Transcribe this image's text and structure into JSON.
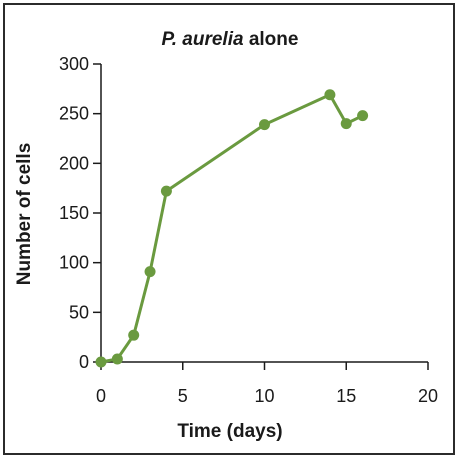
{
  "chart_data": {
    "type": "line",
    "title": {
      "italic": "P. aurelia",
      "rest": " alone"
    },
    "xlabel": "Time (days)",
    "ylabel": "Number of cells",
    "xlim": [
      0,
      20
    ],
    "ylim": [
      0,
      300
    ],
    "xticks": [
      0,
      5,
      10,
      15,
      20
    ],
    "yticks": [
      0,
      50,
      100,
      150,
      200,
      250,
      300
    ],
    "grid": false,
    "color": "#6a9a3f",
    "series": [
      {
        "x": [
          0,
          1,
          2,
          3,
          4,
          10,
          14,
          15,
          16
        ],
        "y": [
          0,
          3,
          27,
          91,
          172,
          239,
          269,
          240,
          248
        ]
      }
    ]
  }
}
